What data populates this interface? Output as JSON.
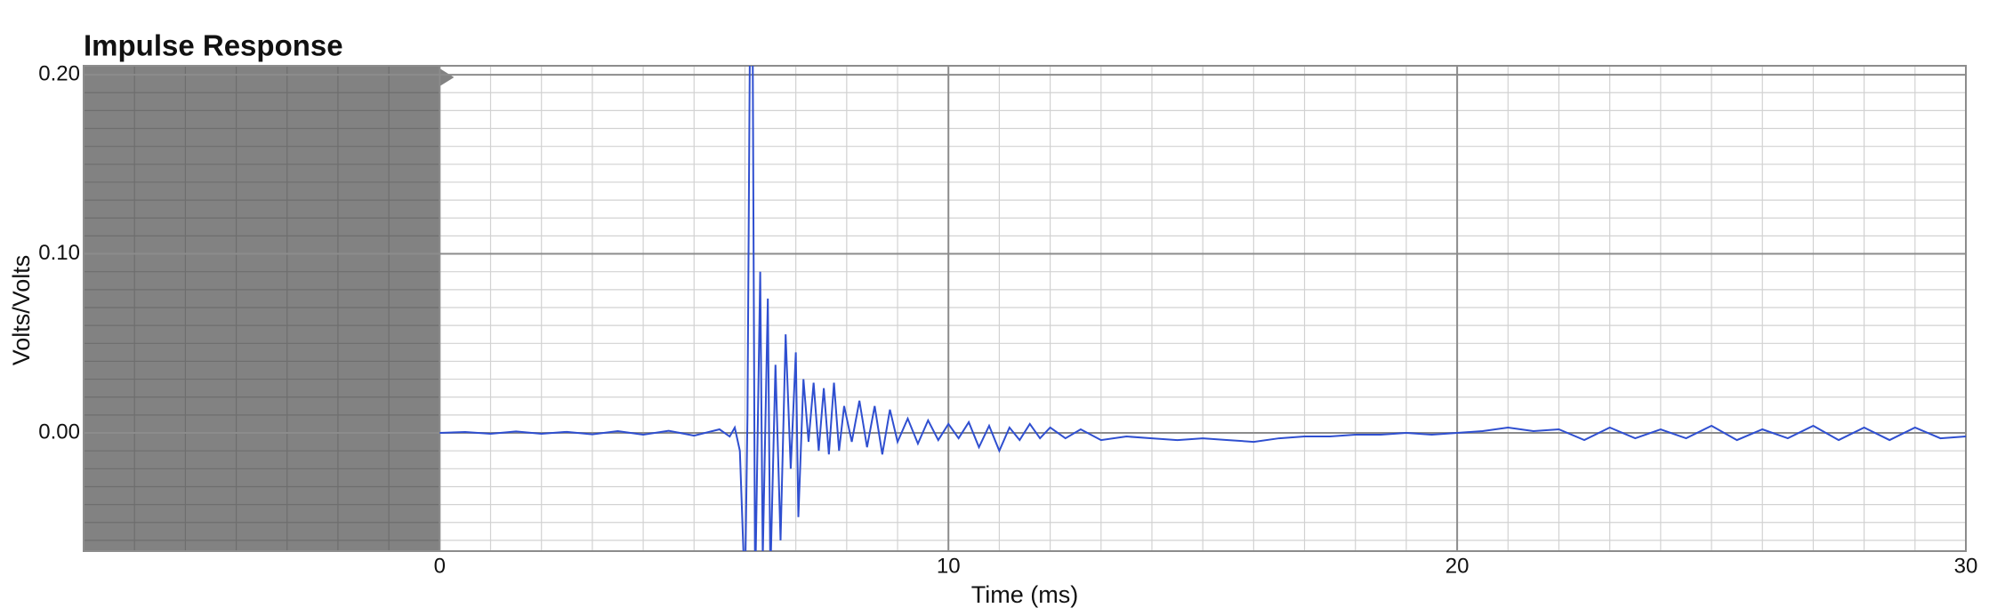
{
  "chart_data": {
    "type": "line",
    "title": "Impulse Response",
    "xlabel": "Time (ms)",
    "ylabel": "Volts/Volts",
    "x": [
      0,
      0.5,
      1,
      1.5,
      2,
      2.5,
      3,
      3.5,
      4,
      4.5,
      5,
      5.5,
      5.7,
      5.8,
      5.9,
      6,
      6.05,
      6.1,
      6.15,
      6.2,
      6.3,
      6.35,
      6.45,
      6.5,
      6.6,
      6.7,
      6.8,
      6.9,
      7,
      7.05,
      7.15,
      7.25,
      7.35,
      7.45,
      7.55,
      7.65,
      7.75,
      7.85,
      7.95,
      8.1,
      8.25,
      8.4,
      8.55,
      8.7,
      8.85,
      9,
      9.2,
      9.4,
      9.6,
      9.8,
      10,
      10.2,
      10.4,
      10.6,
      10.8,
      11,
      11.2,
      11.4,
      11.6,
      11.8,
      12,
      12.3,
      12.6,
      13,
      13.5,
      14,
      14.5,
      15,
      15.5,
      16,
      16.5,
      17,
      17.5,
      18,
      18.5,
      19,
      19.5,
      20,
      20.5,
      21,
      21.5,
      22,
      22.5,
      23,
      23.5,
      24,
      24.5,
      25,
      25.5,
      26,
      26.5,
      27,
      27.5,
      28,
      28.5,
      29,
      29.5,
      30
    ],
    "values": [
      0,
      0.0005,
      -0.0005,
      0.0008,
      -0.0005,
      0.0006,
      -0.0008,
      0.001,
      -0.001,
      0.0012,
      -0.0015,
      0.002,
      -0.002,
      0.003,
      -0.01,
      -0.09,
      0.01,
      0.23,
      0.23,
      -0.09,
      0.09,
      -0.07,
      0.075,
      -0.08,
      0.038,
      -0.06,
      0.055,
      -0.02,
      0.045,
      -0.047,
      0.03,
      -0.005,
      0.028,
      -0.01,
      0.025,
      -0.012,
      0.028,
      -0.01,
      0.015,
      -0.005,
      0.018,
      -0.008,
      0.015,
      -0.012,
      0.013,
      -0.005,
      0.008,
      -0.006,
      0.007,
      -0.004,
      0.005,
      -0.003,
      0.006,
      -0.008,
      0.004,
      -0.01,
      0.003,
      -0.004,
      0.005,
      -0.003,
      0.003,
      -0.003,
      0.002,
      -0.004,
      -0.002,
      -0.003,
      -0.004,
      -0.003,
      -0.004,
      -0.005,
      -0.003,
      -0.002,
      -0.002,
      -0.001,
      -0.001,
      0,
      -0.001,
      0,
      0.001,
      0.003,
      0.001,
      0.002,
      -0.004,
      0.003,
      -0.003,
      0.002,
      -0.003,
      0.004,
      -0.004,
      0.002,
      -0.003,
      0.004,
      -0.004,
      0.003,
      -0.004,
      0.003,
      -0.003,
      -0.002
    ],
    "color": "#2f4fd0",
    "xlim": [
      -7,
      30
    ],
    "ylim": [
      -0.066,
      0.205
    ],
    "xticks": [
      0,
      10,
      20,
      30
    ],
    "yticks": [
      {
        "value": 0.2,
        "label": "0.20"
      },
      {
        "value": 0.1,
        "label": "0.10"
      },
      {
        "value": 0,
        "label": "0.00"
      }
    ],
    "shaded_xlim": [
      -7,
      0
    ],
    "grid": true,
    "minor_grid": {
      "x_step": 1,
      "y_step": 0.01
    }
  }
}
